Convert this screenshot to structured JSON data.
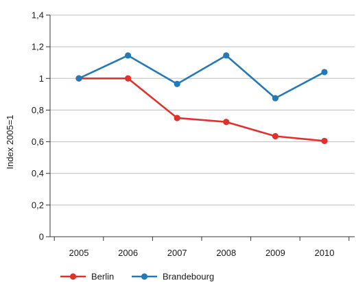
{
  "chart_data": {
    "type": "line",
    "title": "",
    "xlabel": "",
    "ylabel": "Index 2005=1",
    "categories": [
      "2005",
      "2006",
      "2007",
      "2008",
      "2009",
      "2010"
    ],
    "y_ticks": [
      "0",
      "0,2",
      "0,4",
      "0,6",
      "0,8",
      "1",
      "1,2",
      "1,4"
    ],
    "ylim": [
      0,
      1.4
    ],
    "grid": true,
    "legend_position": "bottom-left",
    "series": [
      {
        "name": "Berlin",
        "color": "#e2302b",
        "values": [
          1.0,
          1.0,
          0.75,
          0.725,
          0.635,
          0.605
        ]
      },
      {
        "name": "Brandebourg",
        "color": "#2479b7",
        "values": [
          1.0,
          1.145,
          0.965,
          1.145,
          0.875,
          1.04
        ]
      }
    ]
  }
}
